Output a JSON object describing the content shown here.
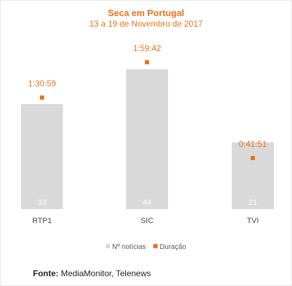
{
  "chart_data": {
    "type": "bar",
    "title": "Seca em Portugal",
    "subtitle": "13 a 19 de Novembro de 2017",
    "categories": [
      "RTP1",
      "SIC",
      "TVI"
    ],
    "series": [
      {
        "name": "Nº notícias",
        "values": [
          33,
          44,
          21
        ],
        "color": "#d9d9d9"
      },
      {
        "name": "Duração",
        "values": [
          "1:30:59",
          "1:59:42",
          "0:41:51"
        ],
        "values_seconds": [
          5459,
          7182,
          2511
        ],
        "color": "#e8731a"
      }
    ],
    "legend": "bottom",
    "grid": false
  },
  "source": {
    "label": "Fonte:",
    "text": " MediaMonitor, Telenews"
  }
}
